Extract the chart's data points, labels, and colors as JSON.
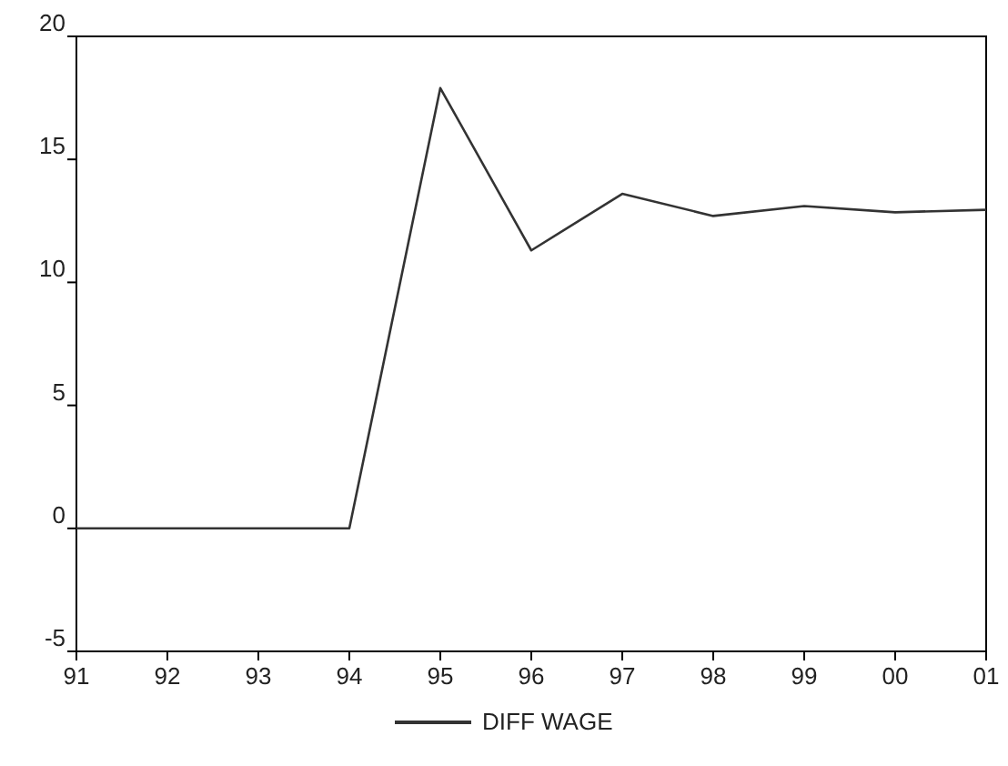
{
  "chart_data": {
    "type": "line",
    "categories": [
      "91",
      "92",
      "93",
      "94",
      "95",
      "96",
      "97",
      "98",
      "99",
      "00",
      "01"
    ],
    "series": [
      {
        "name": "DIFF WAGE",
        "color": "#333333",
        "values": [
          0,
          0,
          0,
          0,
          17.9,
          11.3,
          13.6,
          12.7,
          13.1,
          12.85,
          12.95
        ]
      }
    ],
    "ylim": [
      -5,
      20
    ],
    "yticks": [
      -5,
      0,
      5,
      10,
      15,
      20
    ],
    "grid": false,
    "legend": "bottom",
    "marker": "none",
    "line_style": "solid"
  }
}
